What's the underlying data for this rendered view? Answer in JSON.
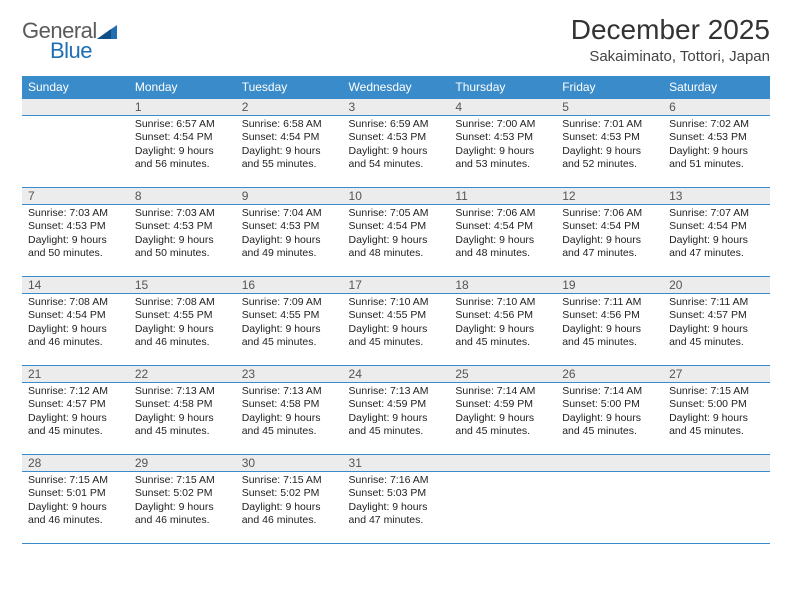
{
  "brand": {
    "part1": "General",
    "part2": "Blue"
  },
  "header": {
    "title": "December 2025",
    "location": "Sakaiminato, Tottori, Japan"
  },
  "colors": {
    "header_bg": "#3a8bc9",
    "header_text": "#ffffff",
    "daynum_bg": "#ececec",
    "border": "#3a8bc9",
    "title_color": "#333333",
    "body_text": "#222222",
    "logo_gray": "#5a5a5a",
    "logo_blue": "#1f6fb2"
  },
  "weekdays": [
    "Sunday",
    "Monday",
    "Tuesday",
    "Wednesday",
    "Thursday",
    "Friday",
    "Saturday"
  ],
  "weeks": [
    [
      {
        "day": "",
        "lines": []
      },
      {
        "day": "1",
        "lines": [
          "Sunrise: 6:57 AM",
          "Sunset: 4:54 PM",
          "Daylight: 9 hours",
          "and 56 minutes."
        ]
      },
      {
        "day": "2",
        "lines": [
          "Sunrise: 6:58 AM",
          "Sunset: 4:54 PM",
          "Daylight: 9 hours",
          "and 55 minutes."
        ]
      },
      {
        "day": "3",
        "lines": [
          "Sunrise: 6:59 AM",
          "Sunset: 4:53 PM",
          "Daylight: 9 hours",
          "and 54 minutes."
        ]
      },
      {
        "day": "4",
        "lines": [
          "Sunrise: 7:00 AM",
          "Sunset: 4:53 PM",
          "Daylight: 9 hours",
          "and 53 minutes."
        ]
      },
      {
        "day": "5",
        "lines": [
          "Sunrise: 7:01 AM",
          "Sunset: 4:53 PM",
          "Daylight: 9 hours",
          "and 52 minutes."
        ]
      },
      {
        "day": "6",
        "lines": [
          "Sunrise: 7:02 AM",
          "Sunset: 4:53 PM",
          "Daylight: 9 hours",
          "and 51 minutes."
        ]
      }
    ],
    [
      {
        "day": "7",
        "lines": [
          "Sunrise: 7:03 AM",
          "Sunset: 4:53 PM",
          "Daylight: 9 hours",
          "and 50 minutes."
        ]
      },
      {
        "day": "8",
        "lines": [
          "Sunrise: 7:03 AM",
          "Sunset: 4:53 PM",
          "Daylight: 9 hours",
          "and 50 minutes."
        ]
      },
      {
        "day": "9",
        "lines": [
          "Sunrise: 7:04 AM",
          "Sunset: 4:53 PM",
          "Daylight: 9 hours",
          "and 49 minutes."
        ]
      },
      {
        "day": "10",
        "lines": [
          "Sunrise: 7:05 AM",
          "Sunset: 4:54 PM",
          "Daylight: 9 hours",
          "and 48 minutes."
        ]
      },
      {
        "day": "11",
        "lines": [
          "Sunrise: 7:06 AM",
          "Sunset: 4:54 PM",
          "Daylight: 9 hours",
          "and 48 minutes."
        ]
      },
      {
        "day": "12",
        "lines": [
          "Sunrise: 7:06 AM",
          "Sunset: 4:54 PM",
          "Daylight: 9 hours",
          "and 47 minutes."
        ]
      },
      {
        "day": "13",
        "lines": [
          "Sunrise: 7:07 AM",
          "Sunset: 4:54 PM",
          "Daylight: 9 hours",
          "and 47 minutes."
        ]
      }
    ],
    [
      {
        "day": "14",
        "lines": [
          "Sunrise: 7:08 AM",
          "Sunset: 4:54 PM",
          "Daylight: 9 hours",
          "and 46 minutes."
        ]
      },
      {
        "day": "15",
        "lines": [
          "Sunrise: 7:08 AM",
          "Sunset: 4:55 PM",
          "Daylight: 9 hours",
          "and 46 minutes."
        ]
      },
      {
        "day": "16",
        "lines": [
          "Sunrise: 7:09 AM",
          "Sunset: 4:55 PM",
          "Daylight: 9 hours",
          "and 45 minutes."
        ]
      },
      {
        "day": "17",
        "lines": [
          "Sunrise: 7:10 AM",
          "Sunset: 4:55 PM",
          "Daylight: 9 hours",
          "and 45 minutes."
        ]
      },
      {
        "day": "18",
        "lines": [
          "Sunrise: 7:10 AM",
          "Sunset: 4:56 PM",
          "Daylight: 9 hours",
          "and 45 minutes."
        ]
      },
      {
        "day": "19",
        "lines": [
          "Sunrise: 7:11 AM",
          "Sunset: 4:56 PM",
          "Daylight: 9 hours",
          "and 45 minutes."
        ]
      },
      {
        "day": "20",
        "lines": [
          "Sunrise: 7:11 AM",
          "Sunset: 4:57 PM",
          "Daylight: 9 hours",
          "and 45 minutes."
        ]
      }
    ],
    [
      {
        "day": "21",
        "lines": [
          "Sunrise: 7:12 AM",
          "Sunset: 4:57 PM",
          "Daylight: 9 hours",
          "and 45 minutes."
        ]
      },
      {
        "day": "22",
        "lines": [
          "Sunrise: 7:13 AM",
          "Sunset: 4:58 PM",
          "Daylight: 9 hours",
          "and 45 minutes."
        ]
      },
      {
        "day": "23",
        "lines": [
          "Sunrise: 7:13 AM",
          "Sunset: 4:58 PM",
          "Daylight: 9 hours",
          "and 45 minutes."
        ]
      },
      {
        "day": "24",
        "lines": [
          "Sunrise: 7:13 AM",
          "Sunset: 4:59 PM",
          "Daylight: 9 hours",
          "and 45 minutes."
        ]
      },
      {
        "day": "25",
        "lines": [
          "Sunrise: 7:14 AM",
          "Sunset: 4:59 PM",
          "Daylight: 9 hours",
          "and 45 minutes."
        ]
      },
      {
        "day": "26",
        "lines": [
          "Sunrise: 7:14 AM",
          "Sunset: 5:00 PM",
          "Daylight: 9 hours",
          "and 45 minutes."
        ]
      },
      {
        "day": "27",
        "lines": [
          "Sunrise: 7:15 AM",
          "Sunset: 5:00 PM",
          "Daylight: 9 hours",
          "and 45 minutes."
        ]
      }
    ],
    [
      {
        "day": "28",
        "lines": [
          "Sunrise: 7:15 AM",
          "Sunset: 5:01 PM",
          "Daylight: 9 hours",
          "and 46 minutes."
        ]
      },
      {
        "day": "29",
        "lines": [
          "Sunrise: 7:15 AM",
          "Sunset: 5:02 PM",
          "Daylight: 9 hours",
          "and 46 minutes."
        ]
      },
      {
        "day": "30",
        "lines": [
          "Sunrise: 7:15 AM",
          "Sunset: 5:02 PM",
          "Daylight: 9 hours",
          "and 46 minutes."
        ]
      },
      {
        "day": "31",
        "lines": [
          "Sunrise: 7:16 AM",
          "Sunset: 5:03 PM",
          "Daylight: 9 hours",
          "and 47 minutes."
        ]
      },
      {
        "day": "",
        "lines": []
      },
      {
        "day": "",
        "lines": []
      },
      {
        "day": "",
        "lines": []
      }
    ]
  ]
}
